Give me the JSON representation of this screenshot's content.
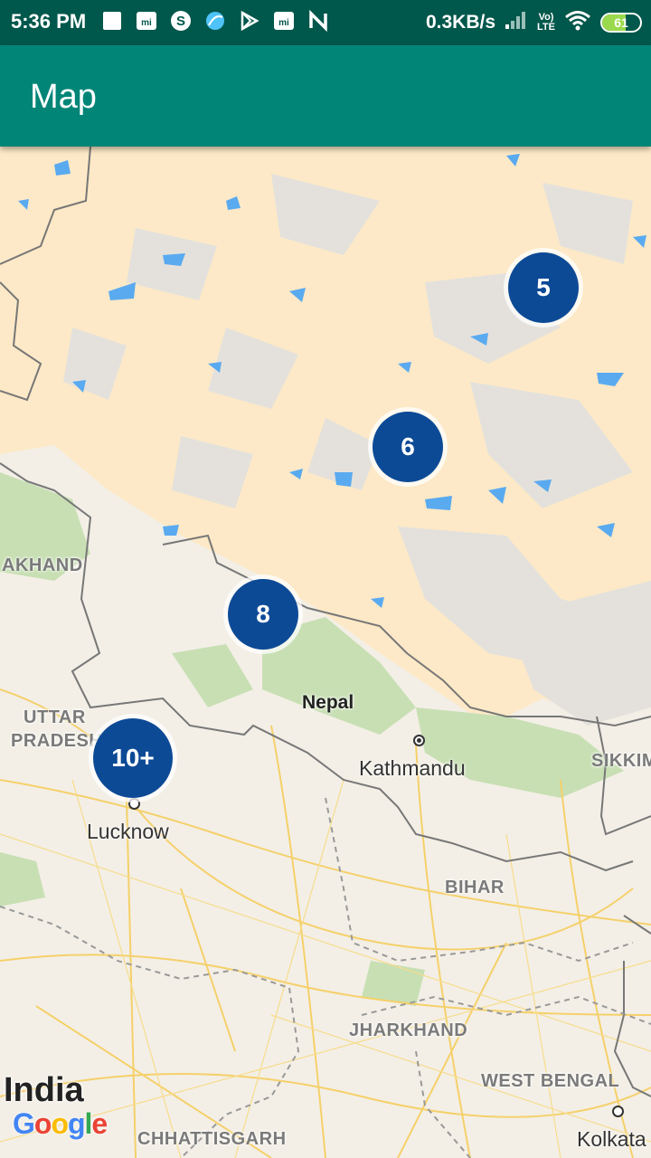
{
  "status_bar": {
    "time": "5:36 PM",
    "net_speed": "0.3KB/s",
    "lte_top": "Vo)",
    "lte_bottom": "LTE",
    "battery_level": "61",
    "battery_fraction": 0.61
  },
  "app_bar": {
    "title": "Map"
  },
  "map": {
    "clusters": [
      {
        "id": "c5",
        "label": "5"
      },
      {
        "id": "c6",
        "label": "6"
      },
      {
        "id": "c8",
        "label": "8"
      },
      {
        "id": "c10",
        "label": "10+"
      }
    ],
    "regions": {
      "uttarakhand": "AKHAND",
      "uttar_pradesh_1": "UTTAR",
      "uttar_pradesh_2": "PRADESH",
      "sikkim": "SIKKIM",
      "bihar": "BIHAR",
      "jharkhand": "JHARKHAND",
      "west_bengal": "WEST BENGAL",
      "chhattisgarh": "CHHATTISGARH"
    },
    "countries": {
      "nepal": "Nepal",
      "india": "India"
    },
    "cities": {
      "kathmandu": "Kathmandu",
      "lucknow": "Lucknow",
      "kolkata": "Kolkata"
    },
    "attribution": {
      "g1": "G",
      "o1": "o",
      "o2": "o",
      "g2": "g",
      "l": "l",
      "e": "e"
    },
    "colors": {
      "cluster": "#0d4a96",
      "land": "#f3efe6",
      "plateau": "#fde9c7",
      "water": "#5aaaf0",
      "roads": "#f5d06a",
      "border": "#777777"
    }
  }
}
